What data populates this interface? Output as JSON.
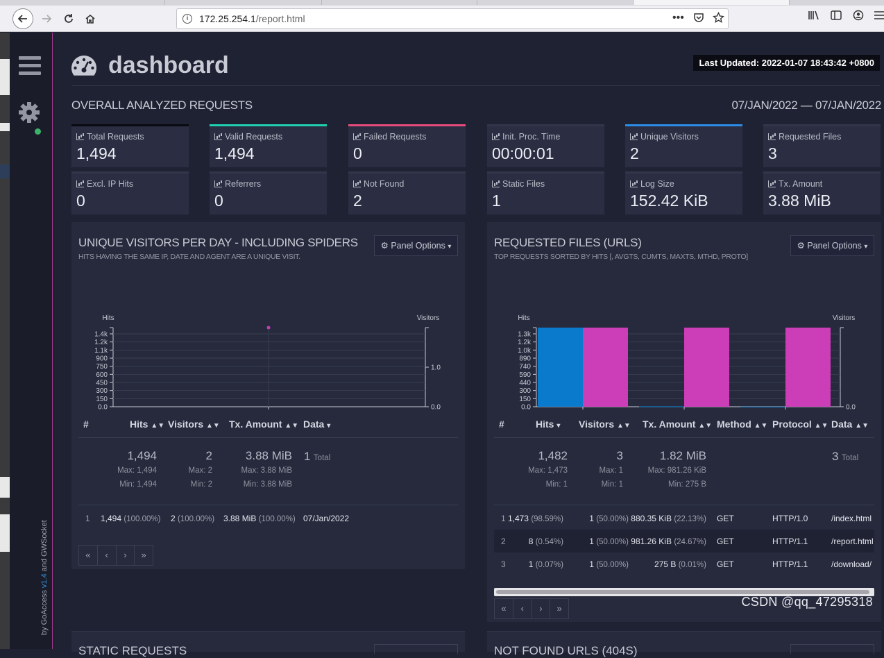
{
  "browser": {
    "url_host": "172.25.254.1",
    "url_path": "/report.html"
  },
  "sidebar": {
    "by_prefix": "by ",
    "app_name": "GoAccess",
    "version": " v1.4",
    "and": " and ",
    "socket": "GWSocket"
  },
  "header": {
    "title": "dashboard",
    "last_updated_label": "Last Updated: 2022-01-07 18:43:42 +0800"
  },
  "overall": {
    "title": "OVERALL ANALYZED REQUESTS",
    "date_range": "07/JAN/2022 — 07/JAN/2022",
    "cards": [
      {
        "label": "Total Requests",
        "value": "1,494",
        "accent": "#0a0b10"
      },
      {
        "label": "Valid Requests",
        "value": "1,494",
        "accent": "#1fd1b0"
      },
      {
        "label": "Failed Requests",
        "value": "0",
        "accent": "#e84a7a"
      },
      {
        "label": "Init. Proc. Time",
        "value": "00:00:01",
        "accent": "#33364a"
      },
      {
        "label": "Unique Visitors",
        "value": "2",
        "accent": "#2a8ce6"
      },
      {
        "label": "Requested Files",
        "value": "3",
        "accent": "#33364a"
      },
      {
        "label": "Excl. IP Hits",
        "value": "0",
        "accent": "#33364a"
      },
      {
        "label": "Referrers",
        "value": "0",
        "accent": "#33364a"
      },
      {
        "label": "Not Found",
        "value": "2",
        "accent": "#33364a"
      },
      {
        "label": "Static Files",
        "value": "1",
        "accent": "#33364a"
      },
      {
        "label": "Log Size",
        "value": "152.42 KiB",
        "accent": "#33364a"
      },
      {
        "label": "Tx. Amount",
        "value": "3.88 MiB",
        "accent": "#33364a"
      }
    ]
  },
  "visitors_panel": {
    "title": "UNIQUE VISITORS PER DAY - INCLUDING SPIDERS",
    "subtitle": "HITS HAVING THE SAME IP, DATE AND AGENT ARE A UNIQUE VISIT.",
    "options_label": "Panel Options",
    "headers": {
      "num": "#",
      "hits": "Hits",
      "visitors": "Visitors",
      "tx": "Tx. Amount",
      "data": "Data"
    },
    "summary": {
      "hits": "1,494",
      "hits_max": "Max: 1,494",
      "hits_min": "Min: 1,494",
      "visitors": "2",
      "visitors_max": "Max: 2",
      "visitors_min": "Min: 2",
      "tx": "3.88 MiB",
      "tx_max": "Max: 3.88 MiB",
      "tx_min": "Min: 3.88 MiB",
      "data_count": "1",
      "data_total": "Total"
    },
    "rows": [
      {
        "num": "1",
        "hits": "1,494",
        "hits_pct": "(100.00%)",
        "visitors": "2",
        "visitors_pct": "(100.00%)",
        "tx": "3.88 MiB",
        "tx_pct": "(100.00%)",
        "data": "07/Jan/2022"
      }
    ]
  },
  "files_panel": {
    "title": "REQUESTED FILES (URLS)",
    "subtitle": "TOP REQUESTS SORTED BY HITS [, AVGTS, CUMTS, MAXTS, MTHD, PROTO]",
    "options_label": "Panel Options",
    "headers": {
      "num": "#",
      "hits": "Hits",
      "visitors": "Visitors",
      "tx": "Tx. Amount",
      "method": "Method",
      "protocol": "Protocol",
      "data": "Data"
    },
    "summary": {
      "hits": "1,482",
      "hits_max": "Max: 1,473",
      "hits_min": "Min: 1",
      "visitors": "3",
      "visitors_max": "Max: 1",
      "visitors_min": "Min: 1",
      "tx": "1.82 MiB",
      "tx_max": "Max: 981.26 KiB",
      "tx_min": "Min: 275 B",
      "data_count": "3",
      "data_total": "Total"
    },
    "rows": [
      {
        "num": "1",
        "hits": "1,473",
        "hits_pct": "(98.59%)",
        "visitors": "1",
        "visitors_pct": "(50.00%)",
        "tx": "880.35 KiB",
        "tx_pct": "(22.13%)",
        "method": "GET",
        "protocol": "HTTP/1.0",
        "data": "/index.html"
      },
      {
        "num": "2",
        "hits": "8",
        "hits_pct": "(0.54%)",
        "visitors": "1",
        "visitors_pct": "(50.00%)",
        "tx": "981.26 KiB",
        "tx_pct": "(24.67%)",
        "method": "GET",
        "protocol": "HTTP/1.1",
        "data": "/report.html"
      },
      {
        "num": "3",
        "hits": "1",
        "hits_pct": "(0.07%)",
        "visitors": "1",
        "visitors_pct": "(50.00%)",
        "tx": "275 B",
        "tx_pct": "(0.01%)",
        "method": "GET",
        "protocol": "HTTP/1.1",
        "data": "/download/"
      }
    ]
  },
  "chart_data": [
    {
      "type": "line",
      "x": [
        "07/Jan/2022"
      ],
      "series": [
        {
          "name": "Hits",
          "values": [
            1494
          ],
          "color": "#c13fb5"
        },
        {
          "name": "Visitors",
          "values": [
            2
          ],
          "color": "#c13fb5"
        }
      ],
      "ylabel": "Hits",
      "y2label": "Visitors",
      "yticks": [
        "0.0",
        "150",
        "300",
        "450",
        "600",
        "750",
        "900",
        "1.1k",
        "1.2k",
        "1.4k"
      ],
      "y2ticks": [
        "0.0",
        "1.0"
      ],
      "ylim": [
        0,
        1494
      ]
    },
    {
      "type": "bar",
      "categories": [
        "GET /index.html HTTP/1.0",
        "GET /report.html HTTP/1.1",
        "GET /download/ HTTP/1.1"
      ],
      "series": [
        {
          "name": "Hits",
          "values": [
            1473,
            8,
            1
          ],
          "color": "#0a7acc"
        },
        {
          "name": "Visitors",
          "values": [
            1,
            1,
            1
          ],
          "color": "#cc3db8"
        }
      ],
      "ylabel": "Hits",
      "y2label": "Visitors",
      "yticks": [
        "0.0",
        "150",
        "300",
        "440",
        "590",
        "740",
        "890",
        "1.0k",
        "1.2k",
        "1.3k"
      ],
      "y2ticks": [
        "0.0"
      ],
      "ylim": [
        0,
        1473
      ]
    }
  ],
  "bottom": {
    "left_title": "STATIC REQUESTS",
    "right_title": "NOT FOUND URLS (404S)"
  },
  "watermark": "CSDN @qq_47295318"
}
